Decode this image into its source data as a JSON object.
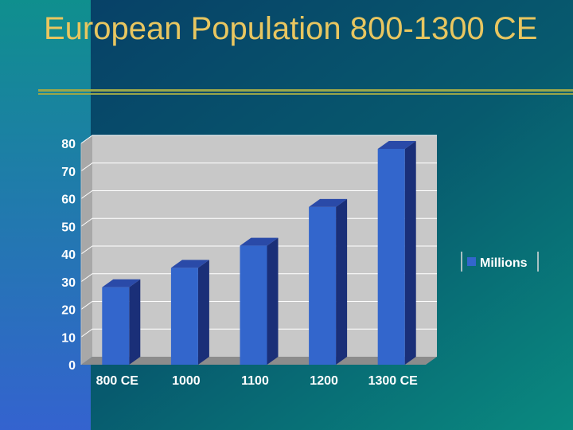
{
  "slide": {
    "title": "European Population 800-1300 CE",
    "title_color": "#e8c660",
    "rule_color": "#9aa64a",
    "background_colors": [
      "#3463cf",
      "#0f8f8e",
      "#073d66"
    ]
  },
  "chart_data": {
    "type": "bar",
    "categories": [
      "800 CE",
      "1000",
      "1100",
      "1200",
      "1300 CE"
    ],
    "series": [
      {
        "name": "Millions",
        "values": [
          28,
          35,
          43,
          57,
          78
        ]
      }
    ],
    "ylim": [
      0,
      80
    ],
    "yticks": [
      0,
      10,
      20,
      30,
      40,
      50,
      60,
      70,
      80
    ],
    "grid": true,
    "legend": "right",
    "three_d": true,
    "colors": {
      "bar_front": "#3366cc",
      "bar_side": "#1a2f78",
      "bar_top": "#2a4aa8",
      "plot_background": "#c8c8c8",
      "floor": "#8c8c8c",
      "gridline": "#ffffff",
      "label_text": "#ffffff"
    }
  }
}
